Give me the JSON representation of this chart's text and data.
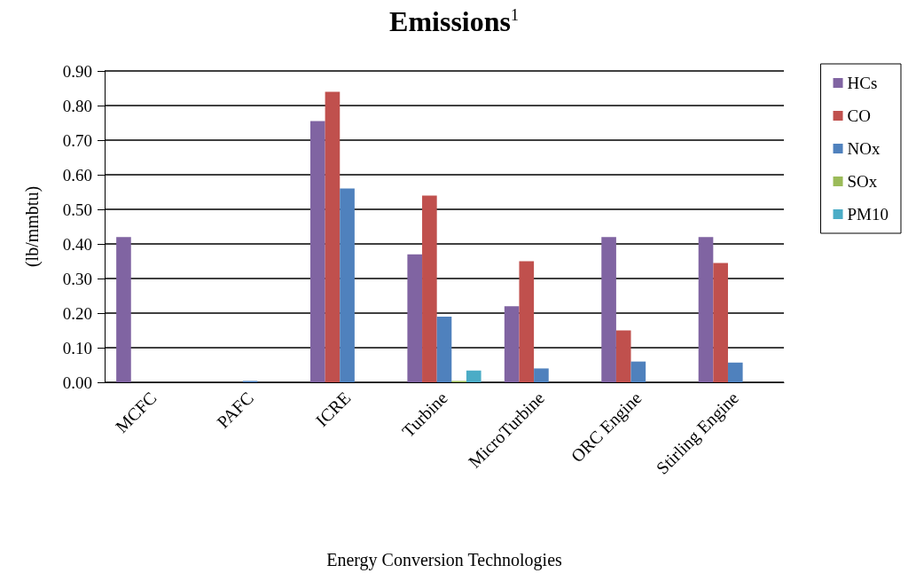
{
  "chart_data": {
    "type": "bar",
    "title": "Emissions$^{1}$",
    "xlabel": "Energy Conversion Technologies",
    "ylabel": "(lb/mmbtu)",
    "categories": [
      "MCFC",
      "PAFC",
      "ICRE",
      "Turbine",
      "MicroTurbine",
      "ORC Engine",
      "Stirling Engine"
    ],
    "series": [
      {
        "name": "HCs",
        "color": "#8064a2",
        "values": [
          0.42,
          null,
          0.755,
          0.37,
          0.22,
          0.42,
          0.42
        ]
      },
      {
        "name": "CO",
        "color": "#c0504d",
        "values": [
          null,
          null,
          0.84,
          0.54,
          0.35,
          0.15,
          0.345
        ]
      },
      {
        "name": "NOx",
        "color": "#4f81bd",
        "values": [
          null,
          0.004,
          0.56,
          0.19,
          0.04,
          0.06,
          0.057
        ]
      },
      {
        "name": "SOx",
        "color": "#9bbb59",
        "values": [
          null,
          null,
          null,
          0.004,
          null,
          null,
          null
        ]
      },
      {
        "name": "PM10",
        "color": "#4bacc6",
        "values": [
          null,
          null,
          null,
          0.034,
          null,
          null,
          null
        ]
      }
    ],
    "ylim": [
      0,
      0.9
    ],
    "yticks": [
      {
        "value": 0,
        "label": "0.00"
      },
      {
        "value": 0.1,
        "label": "0.10"
      },
      {
        "value": 0.2,
        "label": "0.20"
      },
      {
        "value": 0.3,
        "label": "0.30"
      },
      {
        "value": 0.4,
        "label": "0.40"
      },
      {
        "value": 0.5,
        "label": "0.50"
      },
      {
        "value": 0.6,
        "label": "0.60"
      },
      {
        "value": 0.7,
        "label": "0.70"
      },
      {
        "value": 0.8,
        "label": "0.80"
      },
      {
        "value": 0.9,
        "label": "0.90"
      }
    ],
    "grid": "y",
    "legend": "top right"
  }
}
